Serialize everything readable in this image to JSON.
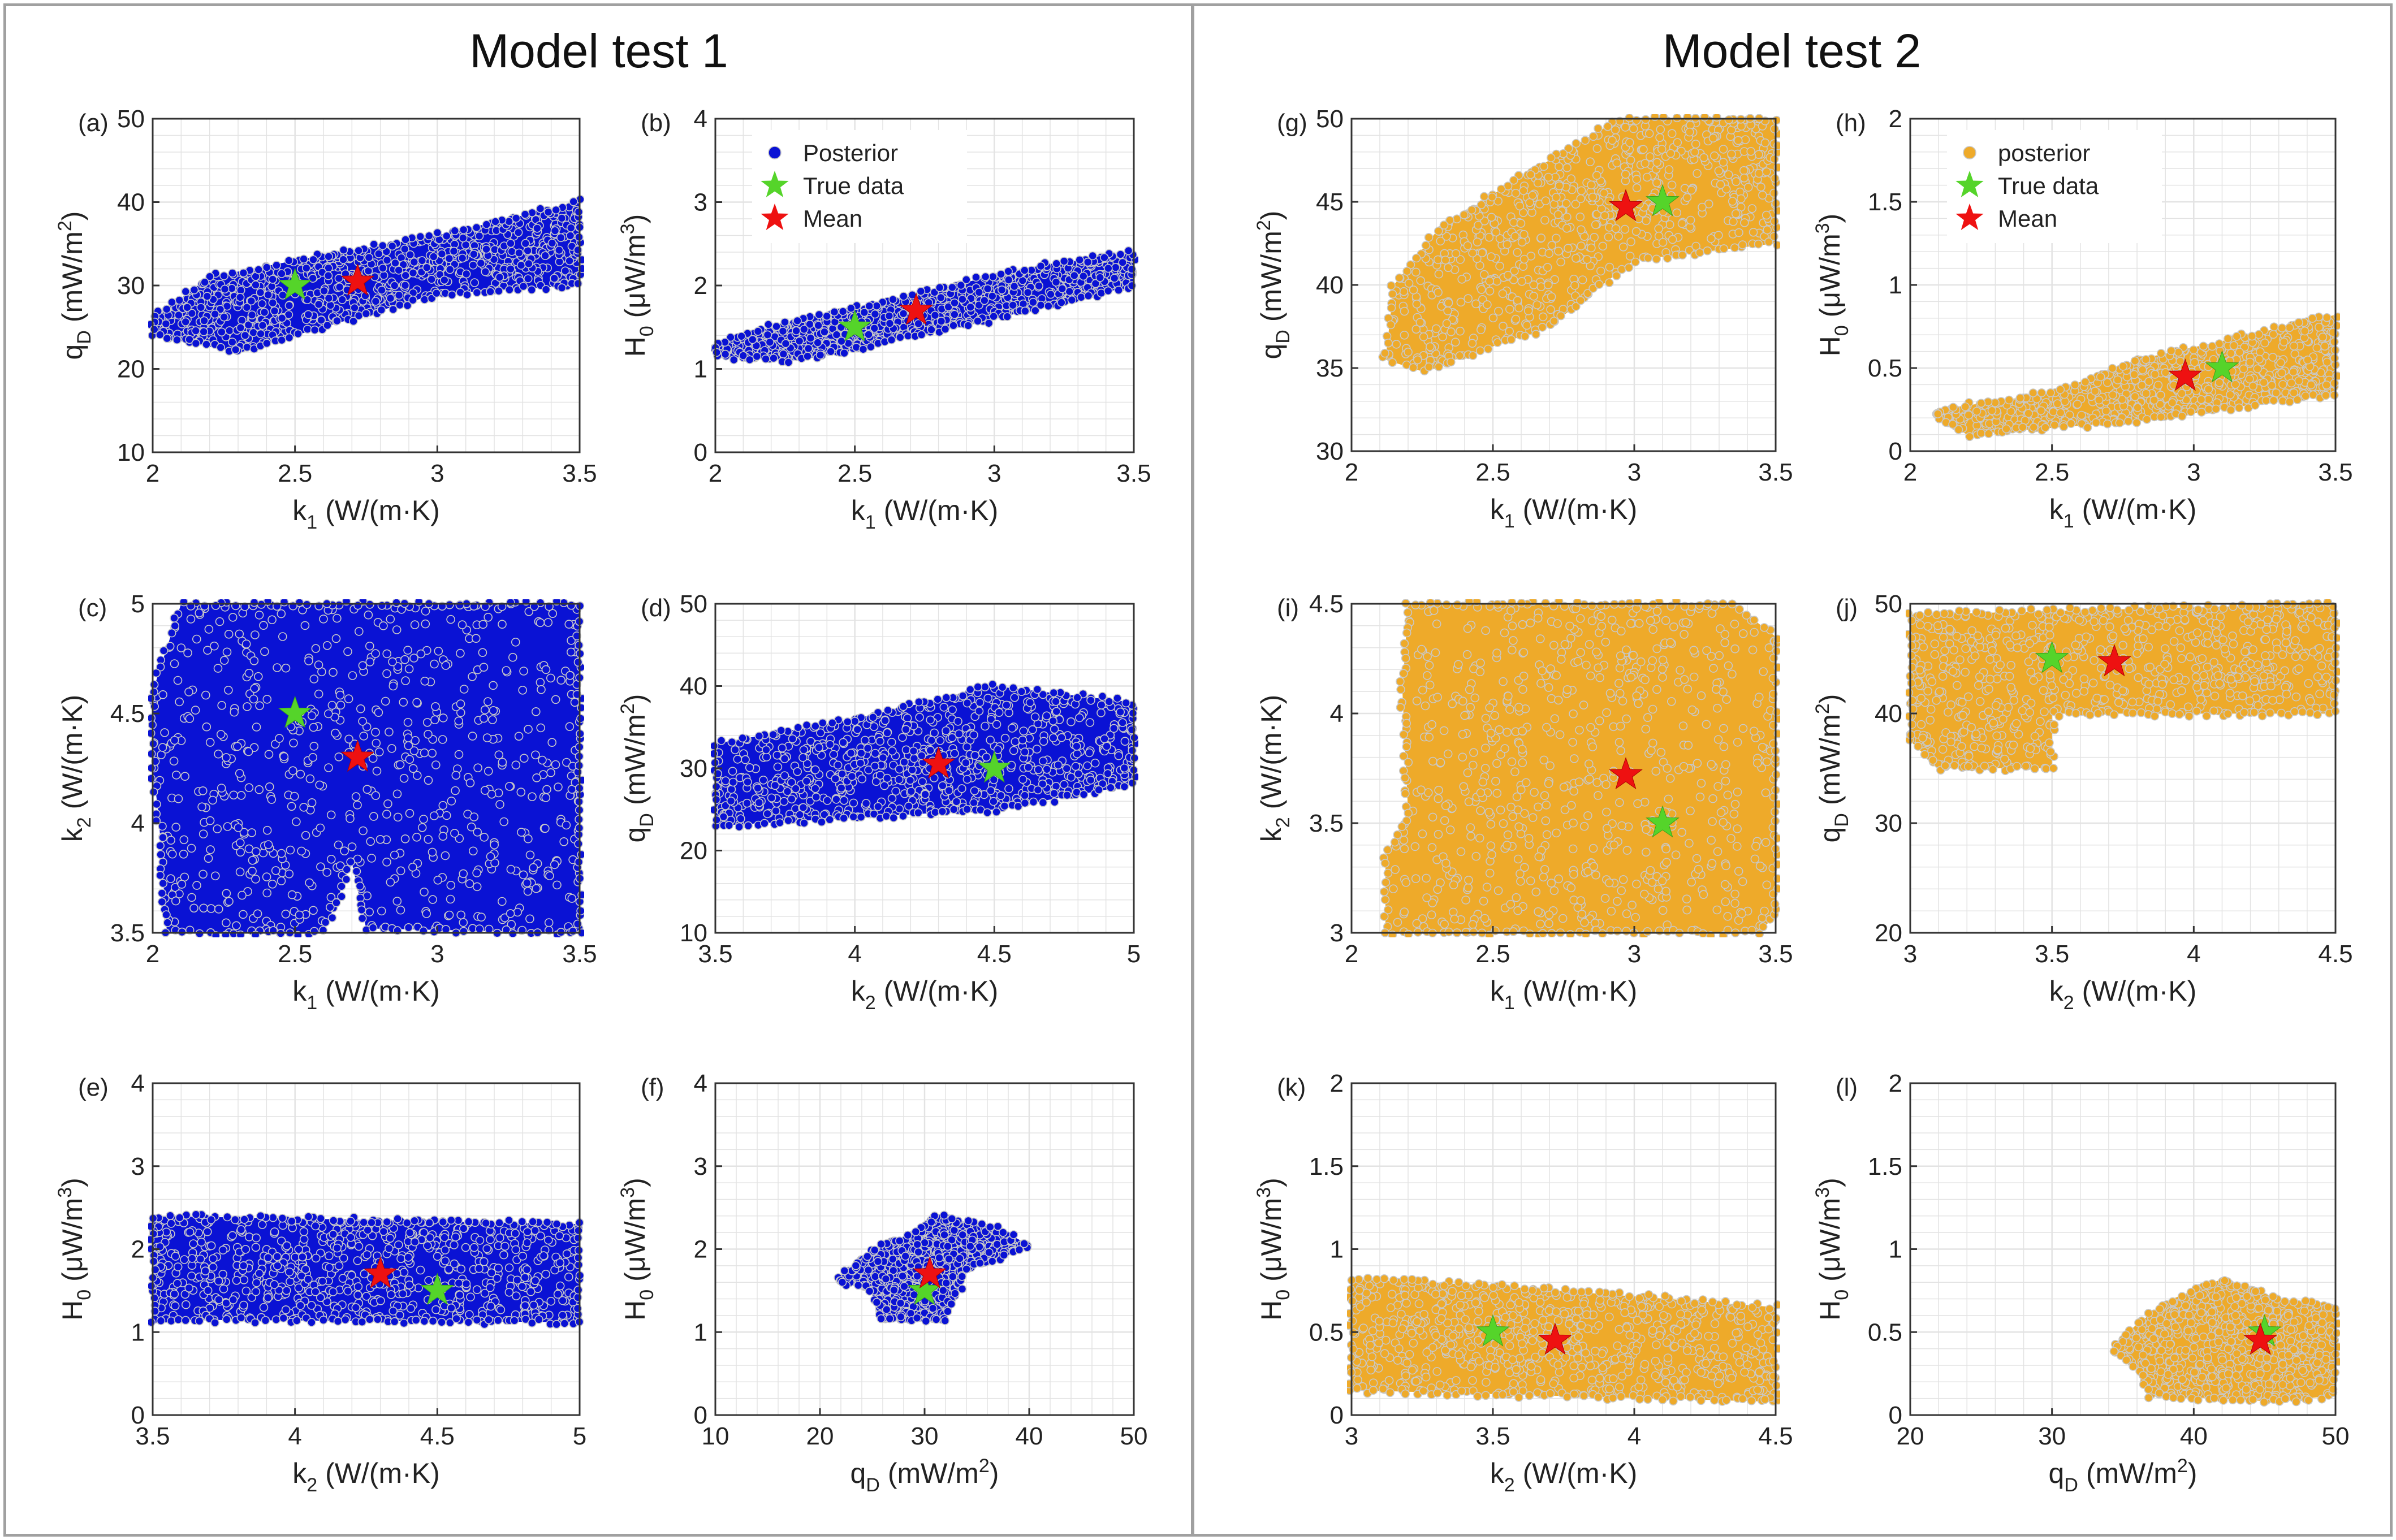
{
  "figure": {
    "titles": {
      "left": "Model test 1",
      "right": "Model test 2"
    },
    "colors": {
      "test1": "#0a12d4",
      "test2": "#eeaa2a",
      "true": "#55d42a",
      "mean": "#ee1111",
      "grid": "#e3e3e3",
      "axis": "#333333"
    }
  },
  "chart_data": [
    {
      "id": "a",
      "type": "scatter",
      "panel_label": "(a)",
      "group": 1,
      "xlim": [
        2,
        3.5
      ],
      "ylim": [
        10,
        50
      ],
      "xticks": [
        "2",
        "2.5",
        "3",
        "3.5"
      ],
      "xtickvals": [
        2,
        2.5,
        3,
        3.5
      ],
      "yticks": [
        "10",
        "20",
        "30",
        "40",
        "50"
      ],
      "ytickvals": [
        10,
        20,
        30,
        40,
        50
      ],
      "xlabel": "k_1 (W/(m·K)",
      "ylabel": "q_D (mW/m^2)",
      "true": [
        2.5,
        30
      ],
      "mean": [
        2.72,
        30.5
      ],
      "region": [
        [
          2,
          24
        ],
        [
          2.3,
          22
        ],
        [
          3.0,
          29
        ],
        [
          3.5,
          30
        ],
        [
          3.5,
          40
        ],
        [
          3.0,
          36
        ],
        [
          2.5,
          33
        ],
        [
          2.2,
          31
        ],
        [
          2,
          26
        ]
      ]
    },
    {
      "id": "b",
      "type": "scatter",
      "panel_label": "(b)",
      "group": 1,
      "xlim": [
        2,
        3.5
      ],
      "ylim": [
        0,
        4
      ],
      "xticks": [
        "2",
        "2.5",
        "3",
        "3.5"
      ],
      "xtickvals": [
        2,
        2.5,
        3,
        3.5
      ],
      "yticks": [
        "0",
        "1",
        "2",
        "3",
        "4"
      ],
      "ytickvals": [
        0,
        1,
        2,
        3,
        4
      ],
      "xlabel": "k_1 (W/(m·K)",
      "ylabel": "H_0 (μW/m^3)",
      "true": [
        2.5,
        1.5
      ],
      "mean": [
        2.72,
        1.7
      ],
      "legend": [
        {
          "kind": "dot",
          "label": "Posterior"
        },
        {
          "kind": "true",
          "label": "True data"
        },
        {
          "kind": "mean",
          "label": "Mean"
        }
      ],
      "region": [
        [
          2,
          1.15
        ],
        [
          2.3,
          1.1
        ],
        [
          3.0,
          1.6
        ],
        [
          3.5,
          2.0
        ],
        [
          3.5,
          2.4
        ],
        [
          3.1,
          2.2
        ],
        [
          2.6,
          1.8
        ],
        [
          2.2,
          1.5
        ],
        [
          2,
          1.3
        ]
      ]
    },
    {
      "id": "c",
      "type": "scatter",
      "panel_label": "(c)",
      "group": 1,
      "xlim": [
        2,
        3.5
      ],
      "ylim": [
        3.5,
        5
      ],
      "xticks": [
        "2",
        "2.5",
        "3",
        "3.5"
      ],
      "xtickvals": [
        2,
        2.5,
        3,
        3.5
      ],
      "yticks": [
        "3.5",
        "4",
        "4.5",
        "5"
      ],
      "ytickvals": [
        3.5,
        4,
        4.5,
        5
      ],
      "xlabel": "k_1 (W/(m·K)",
      "ylabel": "k_2 (W/(m·K)",
      "true": [
        2.5,
        4.5
      ],
      "mean": [
        2.72,
        4.3
      ],
      "region": [
        [
          2.0,
          4.25
        ],
        [
          2.02,
          4.05
        ],
        [
          2.05,
          3.5
        ],
        [
          2.6,
          3.5
        ],
        [
          2.7,
          3.82
        ],
        [
          2.75,
          3.52
        ],
        [
          3.5,
          3.5
        ],
        [
          3.5,
          5
        ],
        [
          2.1,
          5
        ],
        [
          2.0,
          4.6
        ]
      ]
    },
    {
      "id": "d",
      "type": "scatter",
      "panel_label": "(d)",
      "group": 1,
      "xlim": [
        3.5,
        5
      ],
      "ylim": [
        10,
        50
      ],
      "xticks": [
        "3.5",
        "4",
        "4.5",
        "5"
      ],
      "xtickvals": [
        3.5,
        4,
        4.5,
        5
      ],
      "yticks": [
        "10",
        "20",
        "30",
        "40",
        "50"
      ],
      "ytickvals": [
        10,
        20,
        30,
        40,
        50
      ],
      "xlabel": "k_2 (W/(m·K)",
      "ylabel": "q_D (mW/m^2)",
      "true": [
        4.5,
        30
      ],
      "mean": [
        4.3,
        30.5
      ],
      "region": [
        [
          3.5,
          23
        ],
        [
          4.0,
          24
        ],
        [
          4.5,
          25
        ],
        [
          5,
          28
        ],
        [
          5,
          38
        ],
        [
          4.5,
          40
        ],
        [
          4.0,
          36
        ],
        [
          3.5,
          33
        ]
      ]
    },
    {
      "id": "e",
      "type": "scatter",
      "panel_label": "(e)",
      "group": 1,
      "xlim": [
        3.5,
        5
      ],
      "ylim": [
        0,
        4
      ],
      "xticks": [
        "3.5",
        "4",
        "4.5",
        "5"
      ],
      "xtickvals": [
        3.5,
        4,
        4.5,
        5
      ],
      "yticks": [
        "0",
        "1",
        "2",
        "3",
        "4"
      ],
      "ytickvals": [
        0,
        1,
        2,
        3,
        4
      ],
      "xlabel": "k_2 (W/(m·K)",
      "ylabel": "H_0 (μW/m^3)",
      "true": [
        4.5,
        1.5
      ],
      "mean": [
        4.3,
        1.7
      ],
      "region": [
        [
          3.5,
          1.15
        ],
        [
          5,
          1.12
        ],
        [
          5,
          2.3
        ],
        [
          4.3,
          2.35
        ],
        [
          3.5,
          2.4
        ]
      ]
    },
    {
      "id": "f",
      "type": "scatter",
      "panel_label": "(f)",
      "group": 1,
      "xlim": [
        10,
        50
      ],
      "ylim": [
        0,
        4
      ],
      "xticks": [
        "10",
        "20",
        "30",
        "40",
        "50"
      ],
      "xtickvals": [
        10,
        20,
        30,
        40,
        50
      ],
      "yticks": [
        "0",
        "1",
        "2",
        "3",
        "4"
      ],
      "ytickvals": [
        0,
        1,
        2,
        3,
        4
      ],
      "xlabel": "q_D (mW/m^2)",
      "ylabel": "H_0 (μW/m^3)",
      "true": [
        30,
        1.5
      ],
      "mean": [
        30.5,
        1.7
      ],
      "region": [
        [
          22,
          1.6
        ],
        [
          25,
          1.5
        ],
        [
          26,
          1.15
        ],
        [
          32,
          1.15
        ],
        [
          34,
          1.75
        ],
        [
          40,
          2.05
        ],
        [
          37,
          2.25
        ],
        [
          31,
          2.4
        ],
        [
          29,
          2.2
        ],
        [
          25,
          2.0
        ],
        [
          22,
          1.65
        ]
      ]
    },
    {
      "id": "g",
      "type": "scatter",
      "panel_label": "(g)",
      "group": 2,
      "xlim": [
        2,
        3.5
      ],
      "ylim": [
        30,
        50
      ],
      "xticks": [
        "2",
        "2.5",
        "3",
        "3.5"
      ],
      "xtickvals": [
        2,
        2.5,
        3,
        3.5
      ],
      "yticks": [
        "30",
        "35",
        "40",
        "45",
        "50"
      ],
      "ytickvals": [
        30,
        35,
        40,
        45,
        50
      ],
      "xlabel": "k_1 (W/(m·K)",
      "ylabel": "q_D (mW/m^2)",
      "true": [
        3.1,
        45
      ],
      "mean": [
        2.97,
        44.7
      ],
      "region": [
        [
          2.12,
          35.5
        ],
        [
          2.25,
          34.8
        ],
        [
          2.7,
          37.5
        ],
        [
          3.0,
          41.5
        ],
        [
          3.5,
          42.5
        ],
        [
          3.5,
          50
        ],
        [
          2.95,
          50
        ],
        [
          2.7,
          47.5
        ],
        [
          2.55,
          46
        ],
        [
          2.3,
          43.2
        ],
        [
          2.15,
          40
        ]
      ]
    },
    {
      "id": "h",
      "type": "scatter",
      "panel_label": "(h)",
      "group": 2,
      "xlim": [
        2,
        3.5
      ],
      "ylim": [
        0,
        2
      ],
      "xticks": [
        "2",
        "2.5",
        "3",
        "3.5"
      ],
      "xtickvals": [
        2,
        2.5,
        3,
        3.5
      ],
      "yticks": [
        "0",
        "0.5",
        "1",
        "1.5",
        "2"
      ],
      "ytickvals": [
        0,
        0.5,
        1,
        1.5,
        2
      ],
      "xlabel": "k_1 (W/(m·K)",
      "ylabel": "H_0 (μW/m^3)",
      "true": [
        3.1,
        0.5
      ],
      "mean": [
        2.97,
        0.45
      ],
      "legend": [
        {
          "kind": "dot",
          "label": "posterior"
        },
        {
          "kind": "true",
          "label": "True data"
        },
        {
          "kind": "mean",
          "label": "Mean"
        }
      ],
      "region": [
        [
          2.1,
          0.2
        ],
        [
          2.2,
          0.1
        ],
        [
          2.8,
          0.18
        ],
        [
          3.5,
          0.35
        ],
        [
          3.5,
          0.82
        ],
        [
          3.2,
          0.7
        ],
        [
          2.8,
          0.55
        ],
        [
          2.5,
          0.35
        ],
        [
          2.1,
          0.25
        ]
      ]
    },
    {
      "id": "i",
      "type": "scatter",
      "panel_label": "(i)",
      "group": 2,
      "xlim": [
        2,
        3.5
      ],
      "ylim": [
        3,
        4.5
      ],
      "xticks": [
        "2",
        "2.5",
        "3",
        "3.5"
      ],
      "xtickvals": [
        2,
        2.5,
        3,
        3.5
      ],
      "yticks": [
        "3",
        "3.5",
        "4",
        "4.5"
      ],
      "ytickvals": [
        3,
        3.5,
        4,
        4.5
      ],
      "xlabel": "k_1 (W/(m·K)",
      "ylabel": "k_2 (W/(m·K)",
      "true": [
        3.1,
        3.5
      ],
      "mean": [
        2.97,
        3.72
      ],
      "region": [
        [
          2.12,
          3.35
        ],
        [
          2.12,
          3.0
        ],
        [
          3.45,
          3.0
        ],
        [
          3.5,
          3.1
        ],
        [
          3.5,
          4.35
        ],
        [
          3.35,
          4.5
        ],
        [
          2.2,
          4.5
        ],
        [
          2.18,
          4.1
        ],
        [
          2.2,
          3.55
        ]
      ]
    },
    {
      "id": "j",
      "type": "scatter",
      "panel_label": "(j)",
      "group": 2,
      "xlim": [
        3,
        4.5
      ],
      "ylim": [
        20,
        50
      ],
      "xticks": [
        "3",
        "3.5",
        "4",
        "4.5"
      ],
      "xtickvals": [
        3,
        3.5,
        4,
        4.5
      ],
      "yticks": [
        "20",
        "30",
        "40",
        "50"
      ],
      "ytickvals": [
        20,
        30,
        40,
        50
      ],
      "xlabel": "k_2 (W/(m·K)",
      "ylabel": "q_D (mW/m^2)",
      "true": [
        3.5,
        45
      ],
      "mean": [
        3.72,
        44.7
      ],
      "region": [
        [
          3.0,
          37.5
        ],
        [
          3.1,
          35
        ],
        [
          3.5,
          35
        ],
        [
          3.5,
          40
        ],
        [
          4.5,
          40
        ],
        [
          4.5,
          50
        ],
        [
          3.0,
          49
        ]
      ]
    },
    {
      "id": "k",
      "type": "scatter",
      "panel_label": "(k)",
      "group": 2,
      "xlim": [
        3,
        4.5
      ],
      "ylim": [
        0,
        2
      ],
      "xticks": [
        "3",
        "3.5",
        "4",
        "4.5"
      ],
      "xtickvals": [
        3,
        3.5,
        4,
        4.5
      ],
      "yticks": [
        "0",
        "0.5",
        "1",
        "1.5",
        "2"
      ],
      "ytickvals": [
        0,
        0.5,
        1,
        1.5,
        2
      ],
      "xlabel": "k_2 (W/(m·K)",
      "ylabel": "H_0 (μW/m^3)",
      "true": [
        3.5,
        0.5
      ],
      "mean": [
        3.72,
        0.45
      ],
      "region": [
        [
          3.0,
          0.15
        ],
        [
          4.5,
          0.08
        ],
        [
          4.5,
          0.65
        ],
        [
          3.5,
          0.78
        ],
        [
          3.0,
          0.82
        ]
      ]
    },
    {
      "id": "l",
      "type": "scatter",
      "panel_label": "(l)",
      "group": 2,
      "xlim": [
        20,
        50
      ],
      "ylim": [
        0,
        2
      ],
      "xticks": [
        "20",
        "30",
        "40",
        "50"
      ],
      "xtickvals": [
        20,
        30,
        40,
        50
      ],
      "yticks": [
        "0",
        "0.5",
        "1",
        "1.5",
        "2"
      ],
      "ytickvals": [
        0,
        0.5,
        1,
        1.5,
        2
      ],
      "xlabel": "q_D (mW/m^2)",
      "ylabel": "H_0 (μW/m^3)",
      "true": [
        45,
        0.5
      ],
      "mean": [
        44.7,
        0.45
      ],
      "region": [
        [
          34.5,
          0.38
        ],
        [
          36,
          0.28
        ],
        [
          37,
          0.12
        ],
        [
          46,
          0.08
        ],
        [
          50,
          0.12
        ],
        [
          50,
          0.65
        ],
        [
          46,
          0.7
        ],
        [
          42,
          0.82
        ],
        [
          38.5,
          0.7
        ],
        [
          36,
          0.55
        ],
        [
          34.5,
          0.42
        ]
      ]
    }
  ]
}
